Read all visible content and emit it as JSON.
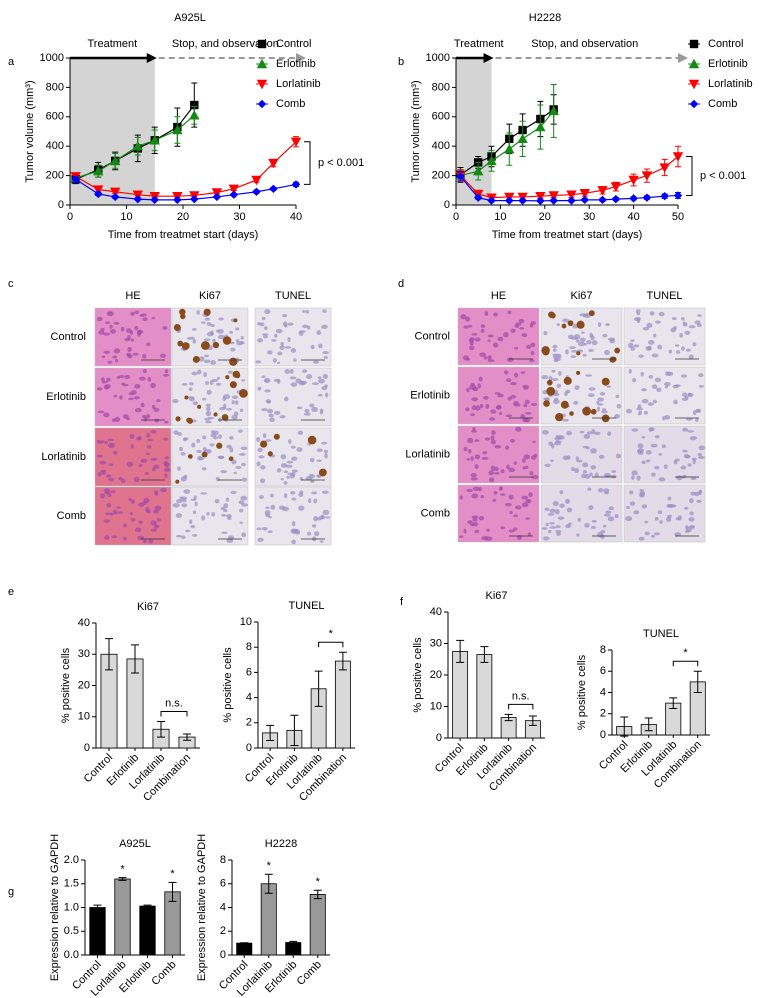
{
  "chart_data": [
    {
      "type": "line",
      "panel": "a",
      "title": "A925L",
      "xlabel": "Time from treatmet start (days)",
      "ylabel": "Tumor volume (mm³)",
      "xlim": [
        0,
        40
      ],
      "xticks": [
        0,
        10,
        20,
        30,
        40
      ],
      "ylim": [
        0,
        1000
      ],
      "yticks": [
        0,
        200,
        400,
        600,
        800,
        1000
      ],
      "treatment_period": [
        0,
        15
      ],
      "phase_labels": [
        "Treatment",
        "Stop, and observation"
      ],
      "bracket_label": "p < 0.001",
      "series": [
        {
          "name": "Control",
          "color": "#000000",
          "marker": "square",
          "x": [
            1,
            5,
            8,
            12,
            15,
            19,
            22
          ],
          "values": [
            175,
            240,
            300,
            385,
            440,
            530,
            680
          ],
          "errors": [
            30,
            50,
            60,
            90,
            90,
            130,
            150
          ]
        },
        {
          "name": "Erlotinib",
          "color": "#138a13",
          "marker": "triangle-up",
          "x": [
            1,
            5,
            8,
            12,
            15,
            19,
            22
          ],
          "values": [
            185,
            230,
            300,
            400,
            440,
            510,
            610
          ],
          "errors": [
            30,
            40,
            50,
            60,
            70,
            90,
            60
          ]
        },
        {
          "name": "Lorlatinib",
          "color": "#ff0000",
          "marker": "triangle-down",
          "x": [
            1,
            5,
            8,
            12,
            15,
            19,
            22,
            26,
            29,
            33,
            36,
            40
          ],
          "values": [
            195,
            105,
            90,
            70,
            60,
            60,
            65,
            85,
            110,
            170,
            285,
            430
          ],
          "errors": [
            20,
            15,
            10,
            10,
            10,
            8,
            8,
            10,
            12,
            15,
            25,
            35
          ]
        },
        {
          "name": "Comb",
          "color": "#0000ff",
          "marker": "diamond",
          "x": [
            1,
            5,
            8,
            12,
            15,
            19,
            22,
            26,
            29,
            33,
            36,
            40
          ],
          "values": [
            175,
            75,
            55,
            40,
            35,
            35,
            40,
            55,
            70,
            90,
            110,
            140
          ],
          "errors": [
            20,
            10,
            8,
            5,
            5,
            5,
            5,
            6,
            8,
            10,
            10,
            15
          ]
        }
      ]
    },
    {
      "type": "line",
      "panel": "b",
      "title": "H2228",
      "xlabel": "Time from treatmet start (days)",
      "ylabel": "Tumor volume (mm³)",
      "xlim": [
        0,
        50
      ],
      "xticks": [
        0,
        10,
        20,
        30,
        40,
        50
      ],
      "ylim": [
        0,
        1000
      ],
      "yticks": [
        0,
        200,
        400,
        600,
        800,
        1000
      ],
      "treatment_period": [
        0,
        8
      ],
      "phase_labels": [
        "Treatment",
        "Stop, and observation"
      ],
      "bracket_label": "p < 0.001",
      "series": [
        {
          "name": "Control",
          "color": "#000000",
          "marker": "square",
          "x": [
            1,
            5,
            8,
            12,
            15,
            19,
            22
          ],
          "values": [
            205,
            290,
            330,
            450,
            510,
            585,
            650
          ],
          "errors": [
            50,
            40,
            70,
            100,
            110,
            120,
            100
          ]
        },
        {
          "name": "Erlotinib",
          "color": "#138a13",
          "marker": "triangle-up",
          "x": [
            1,
            5,
            8,
            12,
            15,
            19,
            22
          ],
          "values": [
            200,
            230,
            300,
            380,
            450,
            530,
            640
          ],
          "errors": [
            40,
            60,
            70,
            110,
            120,
            150,
            180
          ]
        },
        {
          "name": "Lorlatinib",
          "color": "#ff0000",
          "marker": "triangle-down",
          "x": [
            1,
            5,
            8,
            12,
            15,
            19,
            22,
            26,
            29,
            33,
            36,
            40,
            43,
            47,
            50
          ],
          "values": [
            200,
            75,
            50,
            55,
            55,
            60,
            65,
            70,
            80,
            100,
            125,
            170,
            200,
            255,
            330
          ],
          "errors": [
            40,
            20,
            15,
            15,
            15,
            15,
            15,
            20,
            20,
            25,
            30,
            40,
            45,
            55,
            70
          ]
        },
        {
          "name": "Comb",
          "color": "#0000ff",
          "marker": "diamond",
          "x": [
            1,
            5,
            8,
            12,
            15,
            19,
            22,
            26,
            29,
            33,
            36,
            40,
            43,
            47,
            50
          ],
          "values": [
            195,
            50,
            30,
            30,
            30,
            28,
            30,
            30,
            35,
            35,
            40,
            45,
            50,
            60,
            65
          ],
          "errors": [
            30,
            10,
            8,
            8,
            8,
            8,
            8,
            8,
            8,
            10,
            10,
            10,
            12,
            15,
            20
          ]
        }
      ]
    },
    {
      "type": "bar",
      "panel": "e",
      "title": "Ki67",
      "ylabel": "% positive cells",
      "categories": [
        "Control",
        "Erlotinib",
        "Lorlatinib",
        "Combination"
      ],
      "values": [
        30,
        28.5,
        6,
        3.5
      ],
      "errors": [
        5,
        4.5,
        2.5,
        1
      ],
      "color": "#d9d9d9",
      "ylim": [
        0,
        40
      ],
      "yticks": [
        0,
        10,
        20,
        30,
        40
      ],
      "bracket_label": "n.s."
    },
    {
      "type": "bar",
      "title": "TUNEL",
      "ylabel": "% positive cells",
      "categories": [
        "Control",
        "Erlotinib",
        "Lorlatinib",
        "Combination"
      ],
      "values": [
        1.2,
        1.4,
        4.7,
        6.9
      ],
      "errors": [
        0.6,
        1.2,
        1.4,
        0.7
      ],
      "color": "#d9d9d9",
      "ylim": [
        0,
        10
      ],
      "yticks": [
        0,
        2,
        4,
        6,
        8,
        10
      ],
      "bracket_label": "*"
    },
    {
      "type": "bar",
      "panel": "f",
      "title": "Ki67",
      "ylabel": "% positive cells",
      "categories": [
        "Control",
        "Erlotinib",
        "Lorlatinib",
        "Combination"
      ],
      "values": [
        27.5,
        26.5,
        6.5,
        5.5
      ],
      "errors": [
        3.5,
        2.5,
        1,
        1.5
      ],
      "color": "#d9d9d9",
      "ylim": [
        0,
        40
      ],
      "yticks": [
        0,
        10,
        20,
        30,
        40
      ],
      "bracket_label": "n.s."
    },
    {
      "type": "bar",
      "title": "TUNEL",
      "ylabel": "% positive cells",
      "categories": [
        "Control",
        "Erlotinib",
        "Lorlatinib",
        "Combination"
      ],
      "values": [
        0.8,
        1,
        3,
        5
      ],
      "errors": [
        0.9,
        0.6,
        0.5,
        1
      ],
      "color": "#d9d9d9",
      "ylim": [
        0,
        8
      ],
      "yticks": [
        0,
        2,
        4,
        6,
        8
      ],
      "bracket_label": "*"
    },
    {
      "type": "bar",
      "panel": "g",
      "title": "A925L",
      "ylabel": "Expression relative to GAPDH",
      "categories": [
        "Control",
        "Lorlatinib",
        "Erlotinib",
        "Comb"
      ],
      "values": [
        1,
        1.6,
        1.03,
        1.33
      ],
      "errors": [
        0.05,
        0.03,
        0.02,
        0.2
      ],
      "colors": [
        "#000000",
        "#999999",
        "#000000",
        "#999999"
      ],
      "ylim": [
        0,
        2
      ],
      "yticks": [
        {
          "value": 0,
          "label": "0.0"
        },
        {
          "value": 0.5,
          "label": "0.5"
        },
        {
          "value": 1,
          "label": "1.0"
        },
        {
          "value": 1.5,
          "label": "1.5"
        },
        {
          "value": 2,
          "label": "2.0"
        }
      ],
      "significance": [
        null,
        "*",
        null,
        "*"
      ]
    },
    {
      "type": "bar",
      "title": "H2228",
      "ylabel": "Expression relative to GAPDH",
      "categories": [
        "Control",
        "Lorlatinib",
        "Erlotinib",
        "Comb"
      ],
      "values": [
        1,
        6,
        1.05,
        5.1
      ],
      "errors": [
        0.03,
        0.8,
        0.1,
        0.35
      ],
      "colors": [
        "#000000",
        "#999999",
        "#000000",
        "#999999"
      ],
      "ylim": [
        0,
        8
      ],
      "yticks": [
        0,
        2,
        4,
        6,
        8
      ],
      "significance": [
        null,
        "*",
        null,
        "*"
      ]
    }
  ],
  "histology": [
    {
      "panel": "c",
      "columns": [
        "HE",
        "Ki67",
        "TUNEL"
      ],
      "rows": [
        "Control",
        "Erlotinib",
        "Lorlatinib",
        "Comb"
      ]
    },
    {
      "panel": "d",
      "columns": [
        "HE",
        "Ki67",
        "TUNEL"
      ],
      "rows": [
        "Control",
        "Erlotinib",
        "Lorlatinib",
        "Comb"
      ]
    }
  ]
}
